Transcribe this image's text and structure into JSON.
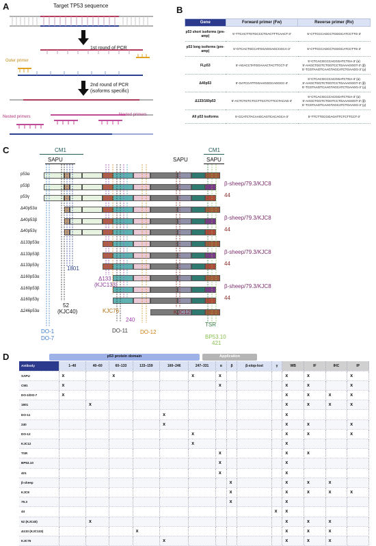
{
  "panelA": {
    "letter": "A",
    "title": "Target TP53 sequence",
    "round1": "1st round of PCR",
    "outer_primer": "Outer primer",
    "round2_line1": "2nd round of PCR",
    "round2_line2": "(isoforms specific)",
    "nested_left": "Nested primers",
    "nested_right": "Nested primers"
  },
  "panelB": {
    "letter": "B",
    "headers": [
      "Gene",
      "Forward primer (Fw)",
      "Reverse primer (Rv)"
    ],
    "rows": [
      {
        "gene": "p53 short isoforms (pre-amp)",
        "fw": "5'-TTCACTTGTGCCCTGACTTTCAACT-3'",
        "rv": "5'-CTTCCCAGCCTGGGCATCCTTG-3'"
      },
      {
        "gene": "p53 long isoforms (pre-amp)",
        "fw": "5'-GTCACTGCCATGGAGGAGCCGCA-3'",
        "rv": "5'-CTTCCCAGCCTGGGCATCCTTG-3'"
      },
      {
        "gene": "FLp53",
        "fw": "5'-AGACCTATGGAAACTACTTCCT-3'",
        "rv": "5'-CTCACGCCCACGGATCTGA-3' (α)\n5'-AAGCTGGTCTGGTCCTGAAAGGGT-3' (β)\n5'-TCGTAAGTCAAGTAGCATCTGAAGG-3' (γ)"
      },
      {
        "gene": "Δ40p53",
        "fw": "5'-GATCCATTGGAAGGGCAGGCC-3'",
        "rv": "5'-CTCACGCCCACGGATCTGA-3' (α)\n5'-AAGCTGGTCTGGTCCTGAAAGGGT-3' (β)\n5'-TCGTAAGTCAAGTAGCATCTGAAGG-3' (γ)"
      },
      {
        "gene": "Δ133/160p53",
        "fw": "5'-ACTCTGTCTCCTTCCTCTTCCTACAG-3'",
        "rv": "5'-CTCACGCCCACGGATCTGA-3' (α)\n5'-AAGCTGGTCTGGTCCTGAAAGGGT-3' (β)\n5'-TCGTAAGTCAAGTAGCATCTGAAGG-3' (γ)"
      },
      {
        "gene": "All p53 isoforms",
        "fw": "5'-CCATCTACAAGCAGTCACAGCA-3'",
        "rv": "5'-TTCTTGCGGAGATTCTCTTCCT-3'"
      }
    ]
  },
  "panelC": {
    "letter": "C",
    "cm1_left": "CM1",
    "sapu_left": "SAPU",
    "sapu_mid": "SAPU",
    "cm1_right": "CM1",
    "sapu_right": "SAPU",
    "isoforms": [
      "p53α",
      "p53β",
      "p53γ",
      "Δ40p53α",
      "Δ40p53β",
      "Δ40p53γ",
      "Δ133p53α",
      "Δ133p53β",
      "Δ133p53γ",
      "Δ160p53α",
      "Δ160p53β",
      "Δ160p53γ",
      "Δ246p53α"
    ],
    "beta_label": "β-sheep/79.3/KJC8",
    "gamma_label": "44",
    "antibodies": {
      "a1801": "1801",
      "d133": "Δ133",
      "kjc133": "(KJC133)",
      "a52": "52",
      "kjc40": "(KJC40)",
      "do1": "DO-1",
      "do7": "DO-7",
      "kjc76": "KJC76",
      "a240": "240",
      "do11": "DO-11",
      "do12": "DO-12",
      "kjc12": "KJC12",
      "tsr": "TSR",
      "bp": "BP53.10",
      "a421": "421"
    },
    "colors": {
      "ta1": "#e0f0d0",
      "ta2": "#c8a078",
      "prd": "#e3a060",
      "dbd1": "#b06040",
      "dbd2": "#5fb0b0",
      "dbd3": "#e9c9d6",
      "dbd4": "#7a7a7a",
      "nls": "#9090a8",
      "olig": "#2f7a70",
      "alpha": "#a05a3a",
      "beta": "#7a3a8a",
      "gamma": "#b04a3a",
      "pale": "#e8f2e0"
    }
  },
  "panelD": {
    "letter": "D",
    "domain_header": "p53 protein domain",
    "app_header": "Application",
    "columns": [
      "Antibody",
      "1–40",
      "40–60",
      "60–133",
      "133–159",
      "160–246",
      "247–331",
      "α",
      "β",
      "β-stop-lost",
      "γ",
      "WB",
      "IF",
      "IHC",
      "IP"
    ],
    "mark": "x",
    "rows": [
      {
        "name": "SAPU",
        "marks": [
          1,
          0,
          1,
          0,
          0,
          1,
          1,
          0,
          0,
          0,
          1,
          1,
          0,
          1
        ]
      },
      {
        "name": "CM1",
        "marks": [
          1,
          0,
          0,
          0,
          0,
          0,
          1,
          0,
          0,
          0,
          1,
          1,
          0,
          1
        ]
      },
      {
        "name": "DO-1/DO-7",
        "marks": [
          1,
          0,
          0,
          0,
          0,
          0,
          0,
          0,
          0,
          0,
          1,
          1,
          1,
          1
        ]
      },
      {
        "name": "1801",
        "marks": [
          0,
          1,
          0,
          0,
          0,
          0,
          0,
          0,
          0,
          0,
          1,
          1,
          1,
          1
        ]
      },
      {
        "name": "DO-11",
        "marks": [
          0,
          0,
          0,
          0,
          1,
          0,
          0,
          0,
          0,
          0,
          1,
          0,
          0,
          0
        ]
      },
      {
        "name": "240",
        "marks": [
          0,
          0,
          0,
          0,
          1,
          0,
          0,
          0,
          0,
          0,
          1,
          1,
          0,
          1
        ]
      },
      {
        "name": "DO-12",
        "marks": [
          0,
          0,
          0,
          0,
          0,
          1,
          0,
          0,
          0,
          0,
          1,
          1,
          0,
          1
        ]
      },
      {
        "name": "KJC12",
        "marks": [
          0,
          0,
          0,
          0,
          0,
          1,
          0,
          0,
          0,
          0,
          1,
          0,
          0,
          0
        ]
      },
      {
        "name": "TSR",
        "marks": [
          0,
          0,
          0,
          0,
          0,
          0,
          1,
          0,
          0,
          0,
          1,
          1,
          0,
          0
        ]
      },
      {
        "name": "BP53.10",
        "marks": [
          0,
          0,
          0,
          0,
          0,
          0,
          1,
          0,
          0,
          0,
          1,
          0,
          0,
          0
        ]
      },
      {
        "name": "421",
        "marks": [
          0,
          0,
          0,
          0,
          0,
          0,
          1,
          0,
          0,
          0,
          1,
          0,
          0,
          0
        ]
      },
      {
        "name": "β-sheep",
        "marks": [
          0,
          0,
          0,
          0,
          0,
          0,
          0,
          1,
          0,
          0,
          1,
          1,
          1,
          0
        ]
      },
      {
        "name": "KJC8",
        "marks": [
          0,
          0,
          0,
          0,
          0,
          0,
          0,
          1,
          0,
          0,
          1,
          1,
          1,
          1
        ]
      },
      {
        "name": "79.3",
        "marks": [
          0,
          0,
          0,
          0,
          0,
          0,
          0,
          1,
          0,
          0,
          1,
          0,
          0,
          0
        ]
      },
      {
        "name": "44",
        "marks": [
          0,
          0,
          0,
          0,
          0,
          0,
          0,
          0,
          0,
          1,
          1,
          0,
          0,
          0
        ]
      },
      {
        "name": "52 (KJC40)",
        "marks": [
          0,
          1,
          0,
          0,
          0,
          0,
          0,
          0,
          0,
          0,
          1,
          1,
          1,
          0
        ]
      },
      {
        "name": "Δ133 (KJC133)",
        "marks": [
          0,
          0,
          0,
          1,
          0,
          0,
          0,
          0,
          0,
          0,
          1,
          1,
          1,
          0
        ]
      },
      {
        "name": "KJC76",
        "marks": [
          0,
          0,
          0,
          0,
          1,
          0,
          0,
          0,
          0,
          0,
          1,
          1,
          1,
          0
        ]
      }
    ]
  }
}
